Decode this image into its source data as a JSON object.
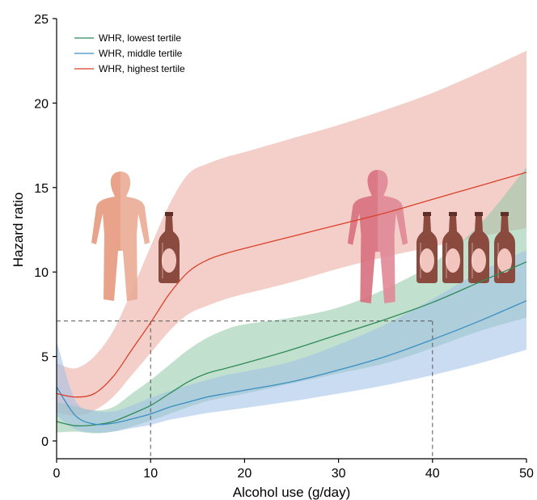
{
  "chart_data": {
    "type": "line",
    "xlabel": "Alcohol use (g/day)",
    "ylabel": "Hazard ratio",
    "xlim": [
      0,
      50
    ],
    "ylim": [
      0,
      25
    ],
    "xticks": [
      0,
      10,
      20,
      30,
      40,
      50
    ],
    "yticks": [
      0,
      5,
      10,
      15,
      20,
      25
    ],
    "grid": false,
    "legend_position": "top-left",
    "reference_lines": [
      {
        "style": "dashed",
        "horizontal_y": 7.1,
        "verticals_x": [
          10,
          40
        ]
      }
    ],
    "series": [
      {
        "name": "WHR, lowest tertile",
        "color": "#2e8b57",
        "band_color": "#8fc7a6",
        "x": [
          0,
          2,
          4,
          6,
          8,
          10,
          12,
          14,
          16,
          18,
          20,
          25,
          30,
          35,
          40,
          45,
          50
        ],
        "values": [
          1.15,
          0.9,
          0.95,
          1.15,
          1.6,
          2.1,
          2.8,
          3.5,
          4.0,
          4.3,
          4.6,
          5.4,
          6.3,
          7.2,
          8.2,
          9.4,
          10.6
        ],
        "lower": [
          0.5,
          0.55,
          0.45,
          0.55,
          0.85,
          1.2,
          1.6,
          2.0,
          2.35,
          2.6,
          2.8,
          3.4,
          4.0,
          4.6,
          5.5,
          6.5,
          7.3
        ],
        "upper": [
          2.3,
          2.05,
          1.8,
          2.0,
          2.8,
          3.6,
          4.5,
          5.4,
          6.1,
          6.6,
          6.9,
          7.3,
          7.9,
          9.0,
          10.5,
          12.8,
          16.2
        ]
      },
      {
        "name": "WHR, middle tertile",
        "color": "#3a8fc2",
        "band_color": "#9ec0e6",
        "x": [
          0,
          2,
          4,
          6,
          8,
          10,
          12,
          14,
          16,
          18,
          20,
          25,
          30,
          35,
          40,
          45,
          50
        ],
        "values": [
          3.2,
          1.5,
          1.0,
          1.05,
          1.3,
          1.6,
          2.0,
          2.3,
          2.6,
          2.8,
          3.0,
          3.5,
          4.2,
          5.0,
          6.0,
          7.1,
          8.3
        ],
        "lower": [
          1.5,
          0.7,
          0.5,
          0.55,
          0.75,
          0.95,
          1.25,
          1.45,
          1.65,
          1.8,
          1.95,
          2.35,
          2.8,
          3.3,
          3.9,
          4.6,
          5.4
        ],
        "upper": [
          5.9,
          2.4,
          1.8,
          1.75,
          2.1,
          2.55,
          2.95,
          3.3,
          3.6,
          3.9,
          4.1,
          4.7,
          5.7,
          6.9,
          8.4,
          10.0,
          11.3
        ]
      },
      {
        "name": "WHR, highest tertile",
        "color": "#d9412b",
        "band_color": "#eba89c",
        "x": [
          0,
          2,
          4,
          6,
          8,
          10,
          12,
          14,
          16,
          18,
          20,
          25,
          30,
          35,
          40,
          45,
          50
        ],
        "values": [
          2.8,
          2.6,
          2.8,
          3.8,
          5.4,
          7.0,
          8.7,
          10.0,
          10.7,
          11.1,
          11.4,
          12.1,
          12.8,
          13.5,
          14.3,
          15.1,
          15.9
        ],
        "lower": [
          1.7,
          1.5,
          1.8,
          2.6,
          3.9,
          5.2,
          6.5,
          7.5,
          8.0,
          8.4,
          8.7,
          9.4,
          10.2,
          10.9,
          11.5,
          12.1,
          12.6
        ],
        "upper": [
          4.6,
          4.3,
          5.0,
          6.5,
          8.9,
          11.5,
          14.0,
          15.8,
          16.4,
          16.8,
          17.1,
          17.9,
          18.7,
          19.6,
          20.6,
          21.8,
          23.1
        ]
      }
    ]
  },
  "illustrations": {
    "left_figure": {
      "icon": "human-silhouette-icon",
      "color": "#e69a7e"
    },
    "right_figure": {
      "icon": "human-silhouette-icon",
      "color": "#d9707f"
    },
    "bottles": {
      "icon": "beer-bottle-icon",
      "color": "#8a4a3e",
      "label_color": "#f2c6bf"
    }
  }
}
